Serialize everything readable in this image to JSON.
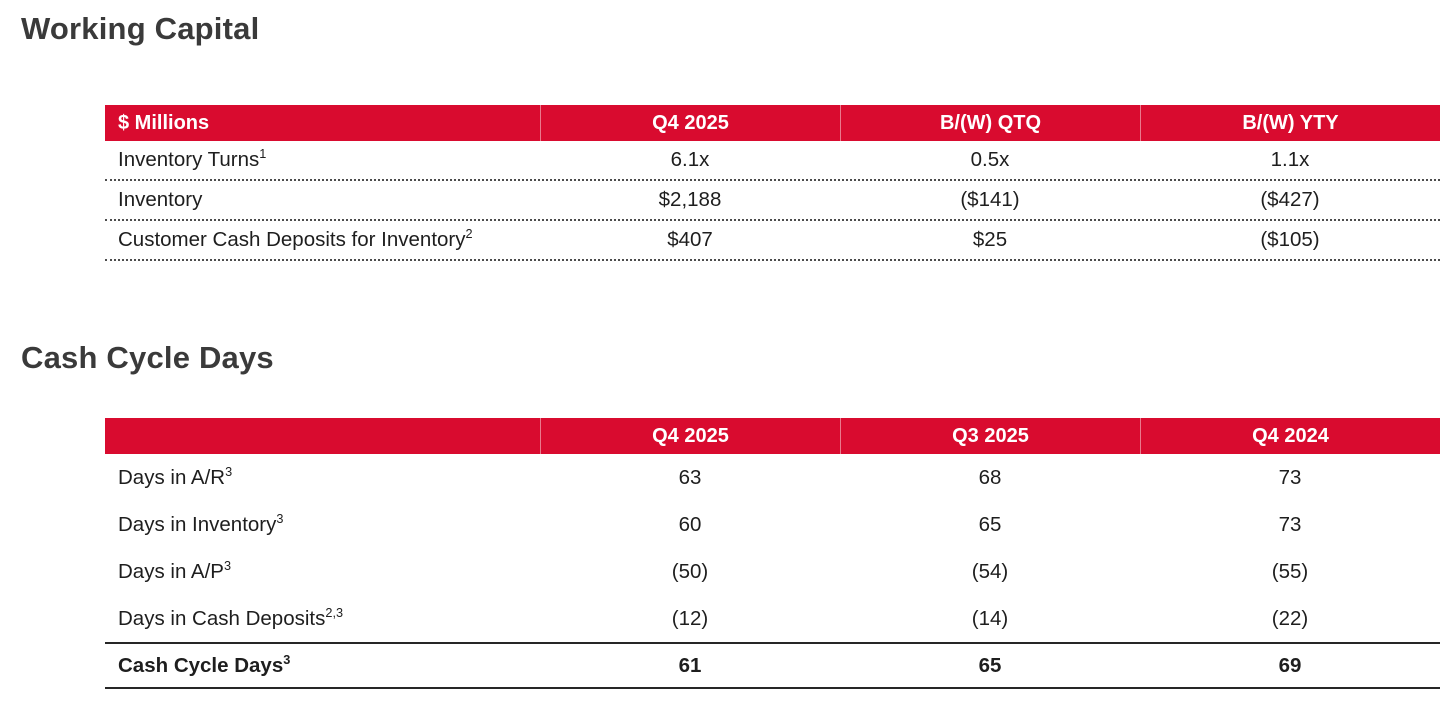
{
  "theme": {
    "accent_red": "#d90b2f",
    "title_color": "#3a3a3a",
    "text_color": "#1e1e1e"
  },
  "working_capital": {
    "title": "Working Capital",
    "table": {
      "headers": [
        "$ Millions",
        "Q4 2025",
        "B/(W) QTQ",
        "B/(W) YTY"
      ],
      "rows": [
        {
          "label": "Inventory Turns",
          "sup": "1",
          "values": [
            "6.1x",
            "0.5x",
            "1.1x"
          ]
        },
        {
          "label": "Inventory",
          "sup": "",
          "values": [
            "$2,188",
            "($141)",
            "($427)"
          ]
        },
        {
          "label": "Customer Cash Deposits for Inventory",
          "sup": "2",
          "values": [
            "$407",
            "$25",
            "($105)"
          ]
        }
      ]
    }
  },
  "cash_cycle": {
    "title": "Cash Cycle Days",
    "table": {
      "headers": [
        "",
        "Q4 2025",
        "Q3 2025",
        "Q4 2024"
      ],
      "rows": [
        {
          "label": "Days in A/R",
          "sup": "3",
          "values": [
            "63",
            "68",
            "73"
          ]
        },
        {
          "label": "Days in Inventory",
          "sup": "3",
          "values": [
            "60",
            "65",
            "73"
          ]
        },
        {
          "label": "Days in A/P",
          "sup": "3",
          "values": [
            "(50)",
            "(54)",
            "(55)"
          ]
        },
        {
          "label": "Days in Cash Deposits",
          "sup": "2,3",
          "values": [
            "(12)",
            "(14)",
            "(22)"
          ]
        }
      ],
      "total_row": {
        "label": "Cash Cycle Days",
        "sup": "3",
        "values": [
          "61",
          "65",
          "69"
        ]
      }
    }
  }
}
